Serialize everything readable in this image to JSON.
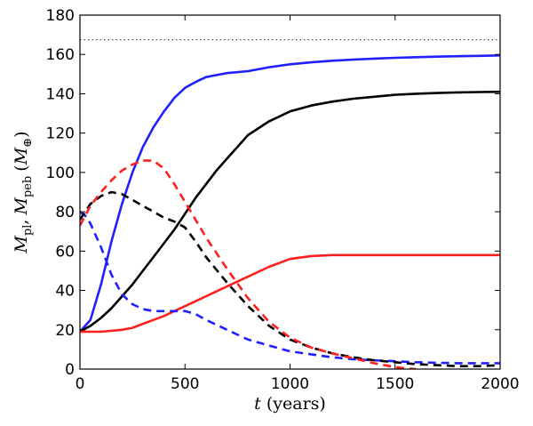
{
  "chart_data": {
    "type": "line",
    "title": "",
    "xlabel": "t (years)",
    "xlabel_italic_part": "t",
    "xlabel_rest": "(years)",
    "ylabel_parts": {
      "m1": "M",
      "sub1": "pl",
      "sep": ",",
      "m2": "M",
      "sub2": "peb",
      "unit_open": "(",
      "unit_m": "M",
      "unit_sub": "⊕",
      "unit_close": ")"
    },
    "xlim": [
      0,
      2000
    ],
    "ylim": [
      0,
      180
    ],
    "xticks": [
      0,
      500,
      1000,
      1500,
      2000
    ],
    "yticks": [
      0,
      20,
      40,
      60,
      80,
      100,
      120,
      140,
      160,
      180
    ],
    "reference_line": {
      "y": 167.5,
      "style": "dotted",
      "color": "#555555"
    },
    "series": [
      {
        "name": "blue planet mass",
        "color": "#1f1fff",
        "style": "solid",
        "x": [
          0,
          50,
          100,
          150,
          200,
          250,
          300,
          350,
          400,
          450,
          500,
          550,
          600,
          650,
          700,
          800,
          900,
          1000,
          1100,
          1200,
          1300,
          1400,
          1500,
          1600,
          1700,
          1800,
          1900,
          2000
        ],
        "y": [
          19,
          25,
          43,
          65,
          84,
          100,
          113,
          123,
          131,
          138,
          143,
          146,
          148.5,
          149.5,
          150.5,
          151.5,
          153.5,
          155,
          156,
          156.8,
          157.4,
          157.9,
          158.3,
          158.6,
          158.9,
          159.1,
          159.3,
          159.5
        ]
      },
      {
        "name": "black planet mass",
        "color": "#000000",
        "style": "solid",
        "x": [
          0,
          50,
          100,
          150,
          200,
          250,
          300,
          350,
          400,
          450,
          500,
          550,
          600,
          650,
          700,
          800,
          900,
          1000,
          1100,
          1200,
          1300,
          1400,
          1500,
          1600,
          1700,
          1800,
          1900,
          2000
        ],
        "y": [
          19,
          22,
          26,
          31,
          37,
          43,
          50,
          57,
          64,
          71,
          79,
          87,
          94,
          101,
          107,
          119,
          126,
          131,
          134,
          136,
          137.5,
          138.5,
          139.5,
          140,
          140.4,
          140.7,
          140.9,
          141
        ]
      },
      {
        "name": "red planet mass",
        "color": "#ff1f1f",
        "style": "solid",
        "x": [
          0,
          100,
          200,
          250,
          300,
          400,
          500,
          600,
          700,
          800,
          900,
          1000,
          1100,
          1200,
          1300,
          1500,
          1700,
          2000
        ],
        "y": [
          19,
          19,
          20,
          21,
          23,
          27,
          32,
          37,
          42,
          47,
          52,
          56,
          57.5,
          58,
          58,
          58,
          58,
          58
        ]
      },
      {
        "name": "blue pebble mass",
        "color": "#1f1fff",
        "style": "dashed",
        "x": [
          0,
          25,
          50,
          100,
          150,
          200,
          250,
          300,
          350,
          400,
          450,
          500,
          550,
          600,
          700,
          800,
          900,
          1000,
          1100,
          1200,
          1300,
          1400,
          1500,
          1600,
          1700,
          1800,
          1900,
          2000
        ],
        "y": [
          80,
          78,
          74,
          62,
          48,
          38,
          33,
          30.5,
          29.5,
          29.5,
          29.5,
          29.5,
          28,
          25,
          20,
          15,
          12,
          9,
          7.5,
          6,
          5,
          4.5,
          4,
          3.5,
          3.2,
          3,
          3,
          3
        ]
      },
      {
        "name": "black pebble mass",
        "color": "#000000",
        "style": "dashed",
        "x": [
          0,
          50,
          100,
          150,
          200,
          250,
          300,
          350,
          400,
          450,
          500,
          550,
          600,
          700,
          800,
          900,
          1000,
          1100,
          1200,
          1300,
          1400,
          1500,
          1600,
          1700,
          1800,
          1900,
          2000
        ],
        "y": [
          76,
          84,
          88,
          90,
          89,
          86,
          83,
          80,
          77,
          75,
          72,
          65,
          57,
          44,
          32,
          22,
          15,
          11,
          8,
          6,
          4.5,
          3.5,
          2.5,
          2,
          1.5,
          1.5,
          2
        ]
      },
      {
        "name": "red pebble mass",
        "color": "#ff1f1f",
        "style": "dashed",
        "x": [
          0,
          50,
          100,
          150,
          200,
          250,
          300,
          350,
          400,
          450,
          500,
          550,
          600,
          700,
          800,
          900,
          1000,
          1100,
          1200,
          1300,
          1400,
          1500,
          1550,
          1600
        ],
        "y": [
          73,
          83,
          90,
          96,
          101,
          104,
          106,
          106,
          102,
          94,
          85,
          76,
          67,
          51,
          36,
          24,
          16,
          11,
          8,
          5.5,
          3,
          1,
          0.3,
          0
        ]
      }
    ]
  }
}
